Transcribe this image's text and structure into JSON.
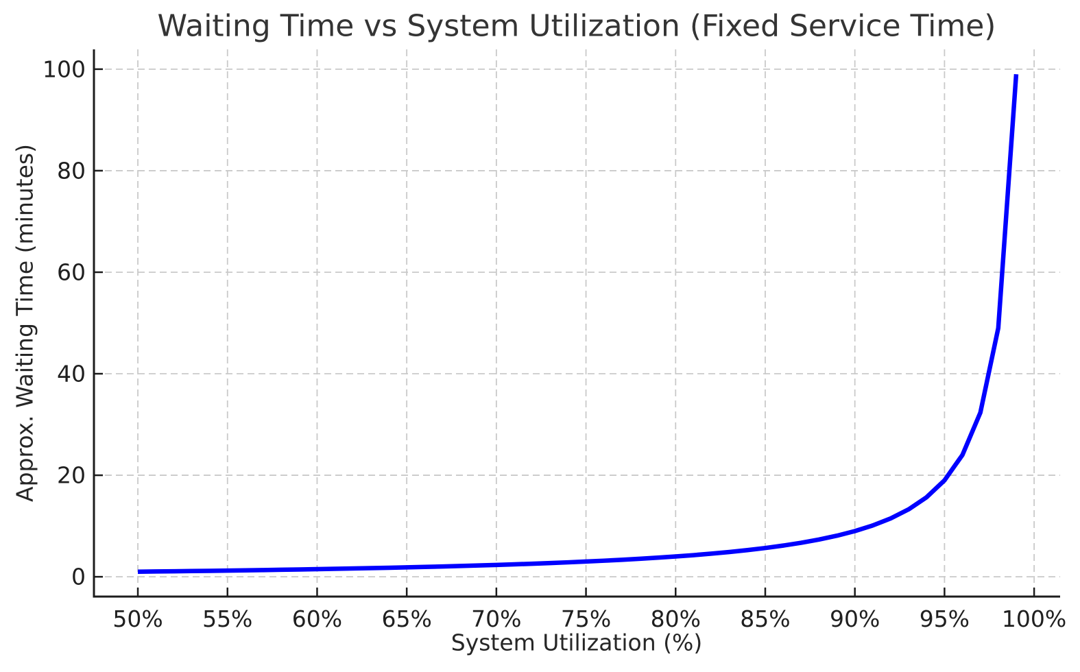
{
  "chart_data": {
    "type": "line",
    "title": "Waiting Time vs System Utilization (Fixed Service Time)",
    "xlabel": "System Utilization (%)",
    "ylabel": "Approx. Waiting Time (minutes)",
    "series": [
      {
        "name": "approx-waiting-time",
        "x": [
          50,
          51,
          52,
          53,
          54,
          55,
          56,
          57,
          58,
          59,
          60,
          61,
          62,
          63,
          64,
          65,
          66,
          67,
          68,
          69,
          70,
          71,
          72,
          73,
          74,
          75,
          76,
          77,
          78,
          79,
          80,
          81,
          82,
          83,
          84,
          85,
          86,
          87,
          88,
          89,
          90,
          91,
          92,
          93,
          94,
          95,
          96,
          97,
          98,
          99
        ],
        "y": [
          1.0,
          1.041,
          1.083,
          1.128,
          1.174,
          1.222,
          1.273,
          1.326,
          1.381,
          1.439,
          1.5,
          1.564,
          1.632,
          1.703,
          1.778,
          1.857,
          1.941,
          2.03,
          2.125,
          2.226,
          2.333,
          2.448,
          2.571,
          2.704,
          2.846,
          3.0,
          3.167,
          3.348,
          3.545,
          3.762,
          4.0,
          4.263,
          4.556,
          4.882,
          5.25,
          5.667,
          6.143,
          6.692,
          7.333,
          8.091,
          9.0,
          10.111,
          11.5,
          13.286,
          15.667,
          19.0,
          24.0,
          32.333,
          49.0,
          99.0
        ]
      }
    ],
    "x_ticks": [
      50,
      55,
      60,
      65,
      70,
      75,
      80,
      85,
      90,
      95,
      100
    ],
    "x_tick_labels": [
      "50%",
      "55%",
      "60%",
      "65%",
      "70%",
      "75%",
      "80%",
      "85%",
      "90%",
      "95%",
      "100%"
    ],
    "y_ticks": [
      0,
      20,
      40,
      60,
      80,
      100
    ],
    "y_tick_labels": [
      "0",
      "20",
      "40",
      "60",
      "80",
      "100"
    ],
    "xlim": [
      47.55,
      101.45
    ],
    "ylim": [
      -3.9,
      103.9
    ],
    "grid": true,
    "legend": "none",
    "colors": {
      "line": "#0000ff",
      "grid": "#c9c9c9",
      "spine": "#1c1c1c",
      "text": "#262626",
      "background": "#ffffff"
    }
  }
}
